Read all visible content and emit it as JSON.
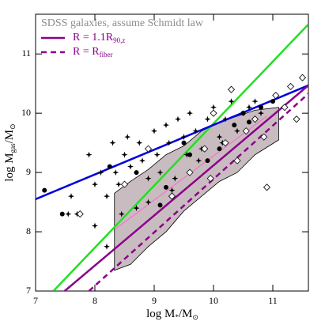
{
  "chart_data": {
    "type": "scatter",
    "legend_title": "SDSS galaxies, assume Schmidt law",
    "xlabel": [
      "log M",
      "*",
      "/M",
      "⊙"
    ],
    "ylabel": [
      "log M",
      "gas",
      "/M",
      "⊙"
    ],
    "xlim": [
      7,
      11.6
    ],
    "ylim": [
      7,
      11.67
    ],
    "xticks": [
      7,
      8,
      9,
      10,
      11
    ],
    "yticks": [
      7,
      8,
      9,
      10,
      11
    ],
    "region": {
      "color": "#c9bcc0",
      "x": [
        8.33,
        8.6,
        8.9,
        9.2,
        9.5,
        9.8,
        10.1,
        10.4,
        10.7,
        11.1
      ],
      "upper": [
        8.65,
        8.85,
        9.05,
        9.3,
        9.45,
        9.7,
        9.85,
        9.95,
        10.05,
        10.1
      ],
      "lower": [
        7.35,
        7.45,
        7.75,
        8.0,
        8.35,
        8.6,
        8.85,
        9.0,
        9.3,
        9.55
      ]
    },
    "lines": [
      {
        "color": "#ff66cc",
        "x": [
          8.35,
          10.9
        ],
        "values": [
          8.05,
          9.95
        ],
        "width": 1
      },
      {
        "color": "#22e022",
        "x": [
          7.3,
          11.6
        ],
        "values": [
          7,
          11.5
        ],
        "width": 2.5
      },
      {
        "color": "#0000dd",
        "x": [
          7,
          11.6
        ],
        "values": [
          8.55,
          10.47
        ],
        "width": 2.5
      },
      {
        "name": [
          "R = 1.1R",
          "90,z"
        ],
        "color": "#8b008b",
        "x": [
          7.49,
          11.6
        ],
        "values": [
          7,
          10.47
        ],
        "width": 2.5,
        "dash": false
      },
      {
        "name": [
          "R = R",
          "fiber"
        ],
        "color": "#8b008b",
        "x": [
          7.9,
          11.6
        ],
        "values": [
          7,
          10.33
        ],
        "width": 2.5,
        "dash": true
      }
    ],
    "series": [
      {
        "marker": "star",
        "x": [
          7.6,
          7.7,
          7.9,
          8.0,
          8.1,
          8.2,
          8.3,
          8.35,
          8.4,
          8.5,
          8.55,
          8.6,
          8.7,
          8.75,
          8.8,
          8.9,
          9.0,
          9.05,
          9.1,
          9.2,
          9.25,
          9.3,
          9.4,
          9.5,
          9.55,
          9.6,
          9.7,
          9.8,
          9.9,
          10.0,
          10.1,
          10.2,
          10.3,
          10.4,
          10.5,
          10.6,
          10.7,
          10.8,
          8.0,
          8.45,
          8.9,
          9.35,
          9.75,
          10.15,
          7.55,
          8.2
        ],
        "values": [
          8.6,
          8.3,
          9.3,
          8.8,
          9.0,
          8.6,
          9.5,
          9.0,
          8.8,
          9.3,
          9.6,
          9.1,
          8.4,
          9.5,
          9.2,
          8.9,
          9.7,
          9.3,
          9.0,
          9.8,
          9.5,
          8.7,
          9.9,
          9.6,
          9.3,
          10.0,
          9.7,
          9.4,
          9.9,
          10.1,
          9.6,
          9.9,
          10.2,
          9.7,
          10.0,
          10.1,
          10.2,
          10.0,
          8.1,
          8.3,
          8.5,
          8.9,
          9.2,
          9.5,
          8.3,
          7.75
        ]
      },
      {
        "marker": "circle",
        "x": [
          7.15,
          7.45,
          8.25,
          8.7,
          9.1,
          9.5,
          9.6,
          9.9,
          10.1,
          10.35,
          10.5,
          10.8,
          11.0,
          9.2,
          10.6
        ],
        "values": [
          8.7,
          8.3,
          9.1,
          9.0,
          8.45,
          9.5,
          9.3,
          9.2,
          9.4,
          9.8,
          10.0,
          10.1,
          10.2,
          8.75,
          9.85
        ]
      },
      {
        "marker": "diamond",
        "x": [
          7.75,
          8.5,
          8.9,
          9.3,
          9.6,
          9.85,
          10.0,
          10.2,
          10.4,
          10.55,
          10.7,
          10.9,
          11.05,
          11.2,
          11.3,
          11.4,
          10.3,
          10.85,
          11.5,
          9.95
        ],
        "values": [
          8.3,
          8.8,
          9.4,
          8.6,
          9.0,
          9.4,
          10.0,
          9.5,
          9.2,
          9.7,
          9.9,
          8.75,
          10.3,
          10.1,
          10.45,
          9.9,
          10.4,
          9.6,
          10.6,
          8.9
        ]
      }
    ]
  }
}
